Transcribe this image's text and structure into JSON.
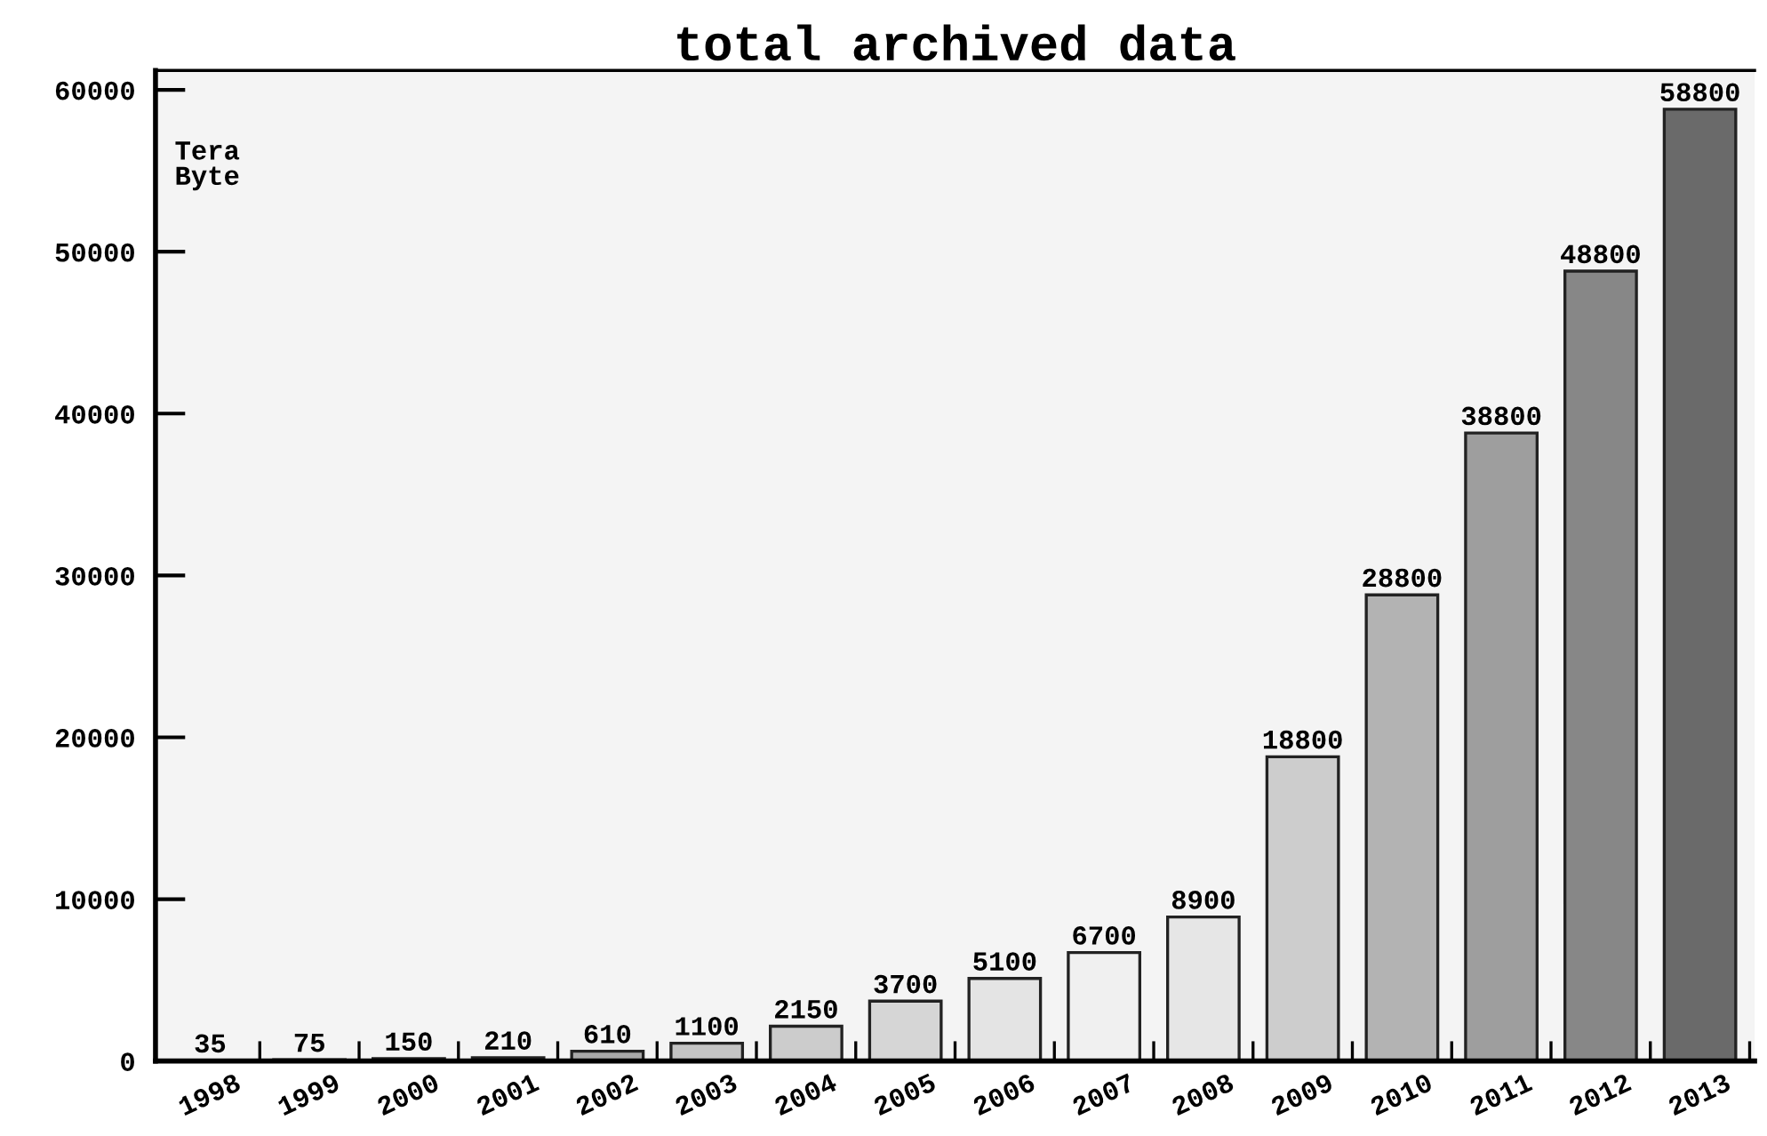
{
  "chart_data": {
    "type": "bar",
    "title": "total archived data",
    "ylabel": "Tera\nByte",
    "categories": [
      "1998",
      "1999",
      "2000",
      "2001",
      "2002",
      "2003",
      "2004",
      "2005",
      "2006",
      "2007",
      "2008",
      "2009",
      "2010",
      "2011",
      "2012",
      "2013"
    ],
    "values": [
      35,
      75,
      150,
      210,
      610,
      1100,
      2150,
      3700,
      5100,
      6700,
      8900,
      18800,
      28800,
      38800,
      48800,
      58800
    ],
    "colors": [
      "#555555",
      "#555555",
      "#555555",
      "#555555",
      "#a8a8a8",
      "#c4c4c4",
      "#cccccc",
      "#d6d6d6",
      "#e4e4e4",
      "#f0f0f0",
      "#e6e6e6",
      "#cdcdcd",
      "#b3b3b3",
      "#9e9e9e",
      "#878787",
      "#6a6a6a"
    ],
    "ylim": [
      0,
      61200
    ],
    "yticks": [
      0,
      10000,
      20000,
      30000,
      40000,
      50000,
      60000
    ],
    "data_labels": true,
    "grid": false,
    "legend": false
  }
}
